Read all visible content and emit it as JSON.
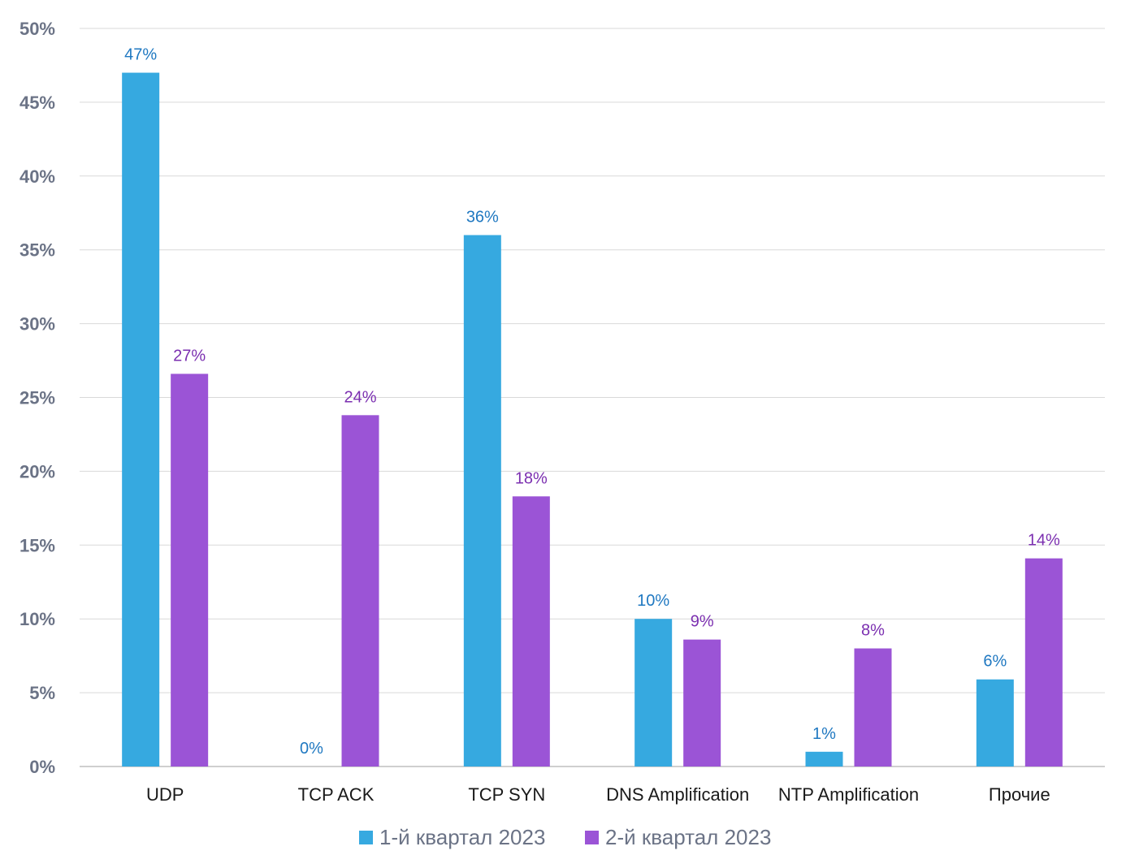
{
  "chart_data": {
    "type": "bar",
    "categories": [
      "UDP",
      "TCP ACK",
      "TCP SYN",
      "DNS Amplification",
      "NTP Amplification",
      "Прочие"
    ],
    "series": [
      {
        "name": "1-й квартал 2023",
        "color": "#36A9E0",
        "label_color": "#1F78C1",
        "values": [
          47,
          0,
          36,
          10,
          1,
          5.9
        ],
        "labels": [
          "47%",
          "0%",
          "36%",
          "10%",
          "1%",
          "6%"
        ]
      },
      {
        "name": "2-й квартал 2023",
        "color": "#9B54D6",
        "label_color": "#7B2FB0",
        "values": [
          26.6,
          23.8,
          18.3,
          8.6,
          8.0,
          14.1
        ],
        "labels": [
          "27%",
          "24%",
          "18%",
          "9%",
          "8%",
          "14%"
        ]
      }
    ],
    "ylim": [
      0,
      50
    ],
    "yticks": [
      0,
      5,
      10,
      15,
      20,
      25,
      30,
      35,
      40,
      45,
      50
    ],
    "ytick_labels": [
      "0%",
      "5%",
      "10%",
      "15%",
      "20%",
      "25%",
      "30%",
      "35%",
      "40%",
      "45%",
      "50%"
    ],
    "title": "",
    "xlabel": "",
    "ylabel": "",
    "grid": true,
    "legend_position": "bottom-center",
    "axis_text_color": "#6B7386",
    "grid_color": "#D9D9D9"
  }
}
